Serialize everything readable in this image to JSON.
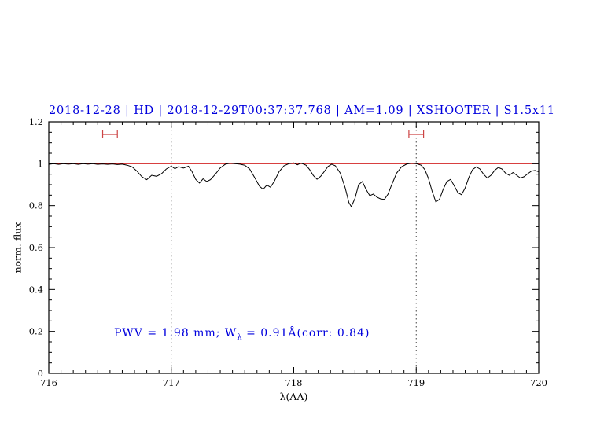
{
  "chart_data": {
    "type": "line",
    "title": "2018-12-28 | HD | 2018-12-29T00:37:37.768 | AM=1.09 | XSHOOTER | S1.5x11",
    "xlabel": "λ(AA)",
    "ylabel": "norm. flux",
    "xlim": [
      716,
      720
    ],
    "ylim": [
      0,
      1.2
    ],
    "xticks": [
      716,
      717,
      718,
      719,
      720
    ],
    "xtick_labels": [
      "716",
      "717",
      "718",
      "719",
      "720"
    ],
    "yticks": [
      0,
      0.2,
      0.4,
      0.6,
      0.8,
      1,
      1.2
    ],
    "ytick_labels": [
      "0",
      "0.2",
      "0.4",
      "0.6",
      "0.8",
      "1",
      "1.2"
    ],
    "xminor_step": 0.1,
    "yminor_step": 0.05,
    "grid": "off",
    "legend": "none",
    "vlines": [
      717,
      719
    ],
    "vline_style": "dotted",
    "error_markers": [
      {
        "x": 716.5,
        "y": 1.14,
        "half_width": 0.06
      },
      {
        "x": 719.0,
        "y": 1.14,
        "half_width": 0.06
      }
    ],
    "annotation": {
      "pre": "PWV = 1.98 mm; W",
      "sub": "λ",
      "post": " = 0.91Å(corr: 0.84)"
    },
    "colors": {
      "title": "#0000dd",
      "annotation": "#0000dd",
      "spectrum": "#000000",
      "continuum": "#cc0000",
      "marker": "#cc4444",
      "vline": "#444444",
      "axis": "#000000"
    },
    "series": [
      {
        "name": "continuum",
        "color": "#cc0000",
        "width": 1,
        "points": [
          [
            716.0,
            1.0
          ],
          [
            720.0,
            1.0
          ]
        ]
      },
      {
        "name": "spectrum",
        "color": "#000000",
        "width": 1,
        "points": [
          [
            716.0,
            0.997
          ],
          [
            716.04,
            1.0
          ],
          [
            716.08,
            0.997
          ],
          [
            716.12,
            1.0
          ],
          [
            716.16,
            0.998
          ],
          [
            716.2,
            1.0
          ],
          [
            716.24,
            0.997
          ],
          [
            716.28,
            1.0
          ],
          [
            716.32,
            0.998
          ],
          [
            716.36,
            1.0
          ],
          [
            716.4,
            0.997
          ],
          [
            716.44,
            0.999
          ],
          [
            716.48,
            0.997
          ],
          [
            716.52,
            0.999
          ],
          [
            716.56,
            0.996
          ],
          [
            716.6,
            0.998
          ],
          [
            716.64,
            0.993
          ],
          [
            716.68,
            0.985
          ],
          [
            716.72,
            0.965
          ],
          [
            716.76,
            0.938
          ],
          [
            716.8,
            0.924
          ],
          [
            716.84,
            0.945
          ],
          [
            716.88,
            0.94
          ],
          [
            716.92,
            0.952
          ],
          [
            716.96,
            0.975
          ],
          [
            717.0,
            0.988
          ],
          [
            717.03,
            0.976
          ],
          [
            717.06,
            0.986
          ],
          [
            717.1,
            0.979
          ],
          [
            717.14,
            0.988
          ],
          [
            717.17,
            0.962
          ],
          [
            717.2,
            0.925
          ],
          [
            717.23,
            0.908
          ],
          [
            717.26,
            0.928
          ],
          [
            717.29,
            0.915
          ],
          [
            717.32,
            0.924
          ],
          [
            717.36,
            0.95
          ],
          [
            717.4,
            0.98
          ],
          [
            717.44,
            0.997
          ],
          [
            717.48,
            1.003
          ],
          [
            717.52,
            1.0
          ],
          [
            717.56,
            0.998
          ],
          [
            717.6,
            0.993
          ],
          [
            717.64,
            0.975
          ],
          [
            717.68,
            0.935
          ],
          [
            717.72,
            0.893
          ],
          [
            717.75,
            0.878
          ],
          [
            717.78,
            0.898
          ],
          [
            717.81,
            0.888
          ],
          [
            717.84,
            0.915
          ],
          [
            717.88,
            0.962
          ],
          [
            717.92,
            0.99
          ],
          [
            717.96,
            1.0
          ],
          [
            718.0,
            1.004
          ],
          [
            718.03,
            0.995
          ],
          [
            718.06,
            1.003
          ],
          [
            718.1,
            0.993
          ],
          [
            718.13,
            0.972
          ],
          [
            718.16,
            0.944
          ],
          [
            718.19,
            0.926
          ],
          [
            718.22,
            0.94
          ],
          [
            718.25,
            0.963
          ],
          [
            718.28,
            0.987
          ],
          [
            718.31,
            0.998
          ],
          [
            718.34,
            0.99
          ],
          [
            718.38,
            0.955
          ],
          [
            718.42,
            0.885
          ],
          [
            718.45,
            0.815
          ],
          [
            718.47,
            0.795
          ],
          [
            718.5,
            0.835
          ],
          [
            718.53,
            0.9
          ],
          [
            718.56,
            0.915
          ],
          [
            718.59,
            0.878
          ],
          [
            718.62,
            0.848
          ],
          [
            718.65,
            0.855
          ],
          [
            718.68,
            0.84
          ],
          [
            718.71,
            0.832
          ],
          [
            718.74,
            0.83
          ],
          [
            718.77,
            0.855
          ],
          [
            718.8,
            0.9
          ],
          [
            718.84,
            0.955
          ],
          [
            718.88,
            0.985
          ],
          [
            718.92,
            0.998
          ],
          [
            718.96,
            1.003
          ],
          [
            719.0,
            1.0
          ],
          [
            719.04,
            0.993
          ],
          [
            719.07,
            0.972
          ],
          [
            719.1,
            0.93
          ],
          [
            719.13,
            0.868
          ],
          [
            719.16,
            0.818
          ],
          [
            719.19,
            0.83
          ],
          [
            719.22,
            0.878
          ],
          [
            719.25,
            0.915
          ],
          [
            719.28,
            0.925
          ],
          [
            719.31,
            0.895
          ],
          [
            719.34,
            0.862
          ],
          [
            719.37,
            0.852
          ],
          [
            719.4,
            0.885
          ],
          [
            719.43,
            0.935
          ],
          [
            719.46,
            0.972
          ],
          [
            719.49,
            0.985
          ],
          [
            719.52,
            0.975
          ],
          [
            719.55,
            0.95
          ],
          [
            719.58,
            0.932
          ],
          [
            719.61,
            0.945
          ],
          [
            719.64,
            0.968
          ],
          [
            719.67,
            0.982
          ],
          [
            719.7,
            0.975
          ],
          [
            719.73,
            0.955
          ],
          [
            719.76,
            0.945
          ],
          [
            719.79,
            0.958
          ],
          [
            719.82,
            0.945
          ],
          [
            719.85,
            0.932
          ],
          [
            719.88,
            0.938
          ],
          [
            719.91,
            0.952
          ],
          [
            719.94,
            0.965
          ],
          [
            719.97,
            0.968
          ],
          [
            720.0,
            0.962
          ]
        ]
      }
    ]
  }
}
